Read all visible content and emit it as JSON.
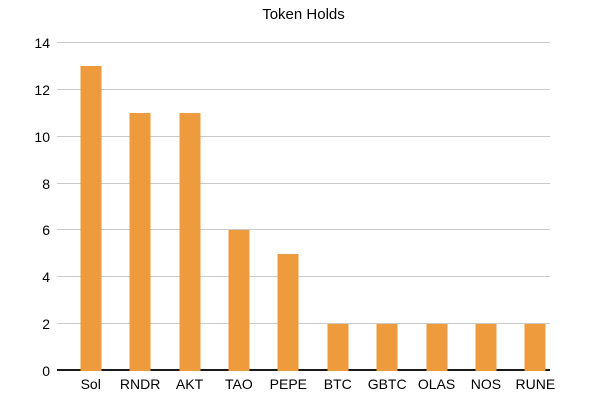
{
  "chart_data": {
    "type": "bar",
    "title": "Token Holds",
    "categories": [
      "Sol",
      "RNDR",
      "AKT",
      "TAO",
      "PEPE",
      "BTC",
      "GBTC",
      "OLAS",
      "NOS",
      "RUNE"
    ],
    "values": [
      13,
      11,
      11,
      6,
      5,
      2,
      2,
      2,
      2,
      2
    ],
    "xlabel": "",
    "ylabel": "",
    "ylim": [
      0,
      14
    ],
    "yticks": [
      0,
      2,
      4,
      6,
      8,
      10,
      12,
      14
    ],
    "grid": true,
    "legend": "none",
    "bar_color": "#EE9B3E",
    "gridline_color": "#C9C9C9",
    "axis_line_color": "#1A1A1A",
    "text_color": "#000000",
    "background_color": "#FFFFFF"
  }
}
